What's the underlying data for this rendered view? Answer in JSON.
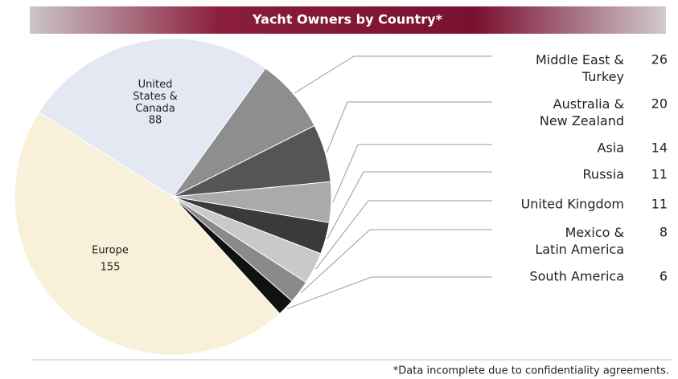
{
  "chart_data": {
    "type": "pie",
    "title": "Yacht Owners by Country*",
    "footnote": "*Data incomplete due to confidentiality agreements.",
    "categories": [
      "Middle East &\nTurkey",
      "Australia &\nNew Zealand",
      "Asia",
      "Russia",
      "United Kingdom",
      "Mexico &\nLatin America",
      "South America",
      "Europe",
      "United\nStates &\nCanada"
    ],
    "values": [
      26,
      20,
      14,
      11,
      11,
      8,
      6,
      155,
      88
    ],
    "colors": [
      "#8e8e8e",
      "#555555",
      "#aaaaaa",
      "#3a3a3a",
      "#c9c9c9",
      "#8a8a8a",
      "#111111",
      "#f8f0d9",
      "#e4e8f2"
    ]
  }
}
